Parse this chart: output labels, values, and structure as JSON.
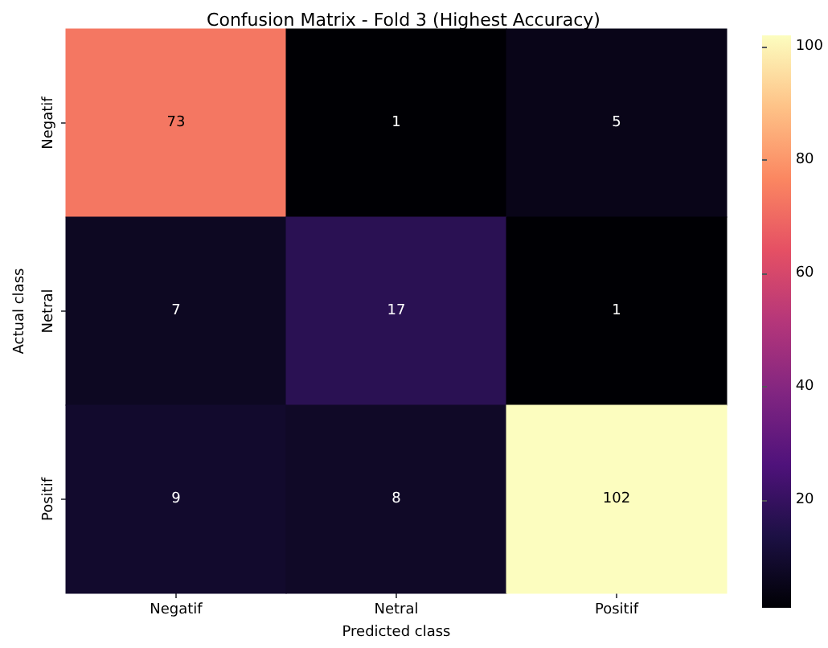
{
  "chart_data": {
    "type": "heatmap",
    "title": "Confusion Matrix - Fold 3 (Highest Accuracy)",
    "xlabel": "Predicted class",
    "ylabel": "Actual class",
    "categories": [
      "Negatif",
      "Netral",
      "Positif"
    ],
    "y_categories": [
      "Negatif",
      "Netral",
      "Positif"
    ],
    "cells": [
      [
        73,
        1,
        5
      ],
      [
        7,
        17,
        1
      ],
      [
        9,
        8,
        102
      ]
    ],
    "clim": [
      1,
      102
    ],
    "cticks": [
      20,
      40,
      60,
      80,
      100
    ],
    "data_labels": true
  }
}
